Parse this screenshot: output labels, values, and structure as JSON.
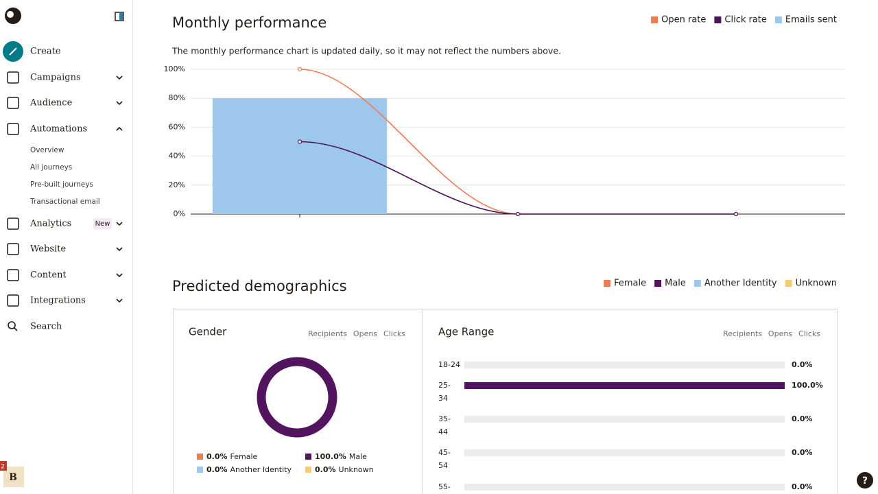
{
  "sidebar": {
    "nav": [
      {
        "label": "Create"
      },
      {
        "label": "Campaigns"
      },
      {
        "label": "Audience"
      },
      {
        "label": "Automations",
        "children": [
          "Overview",
          "All journeys",
          "Pre-built journeys",
          "Transactional email"
        ]
      },
      {
        "label": "Analytics",
        "badge": "New"
      },
      {
        "label": "Website"
      },
      {
        "label": "Content"
      },
      {
        "label": "Integrations"
      },
      {
        "label": "Search"
      }
    ],
    "avatar": "B",
    "notification_count": "2"
  },
  "help": "?",
  "chart_data": [
    {
      "type": "combo",
      "title": "Monthly performance",
      "subtitle": "The monthly performance chart is updated daily, so it may not reflect the numbers above.",
      "categories": [
        null,
        null,
        null
      ],
      "series": [
        {
          "name": "Open rate",
          "type": "line",
          "color": "#f07a52",
          "values": [
            100,
            0,
            0
          ]
        },
        {
          "name": "Click rate",
          "type": "line",
          "color": "#4b1259",
          "values": [
            50,
            0,
            0
          ]
        },
        {
          "name": "Emails sent",
          "type": "bar",
          "color": "#9ec7ec",
          "values": [
            80,
            0,
            0
          ]
        }
      ],
      "ylim": [
        0,
        100
      ],
      "yticks": [
        {
          "value": 0,
          "label": "0%"
        },
        {
          "value": 20,
          "label": "20%"
        },
        {
          "value": 40,
          "label": "40%"
        },
        {
          "value": 60,
          "label": "60%"
        },
        {
          "value": 80,
          "label": "80%"
        },
        {
          "value": 100,
          "label": "100%"
        }
      ],
      "grid": true,
      "legend": "top-right"
    },
    {
      "type": "pie",
      "title": "Predicted demographics",
      "subtitle": "Gender",
      "tabs": [
        "Recipients",
        "Opens",
        "Clicks"
      ],
      "categories": [
        "Female",
        "Male",
        "Another Identity",
        "Unknown"
      ],
      "colors": [
        "#f07a52",
        "#52145e",
        "#9ec7ec",
        "#f5cd6a"
      ],
      "values": [
        0,
        100,
        0,
        0
      ],
      "value_labels": [
        "0.0%",
        "100.0%",
        "0.0%",
        "0.0%"
      ],
      "donut": true,
      "legend": "top-right"
    },
    {
      "type": "bar",
      "orientation": "horizontal",
      "subtitle": "Age Range",
      "tabs": [
        "Recipients",
        "Opens",
        "Clicks"
      ],
      "categories": [
        "18-24",
        "25-34",
        "35-44",
        "45-54",
        "55-"
      ],
      "values": [
        0,
        100,
        0,
        0,
        0
      ],
      "value_labels": [
        "0.0%",
        "100.0%",
        "0.0%",
        "0.0%",
        "0.0%"
      ],
      "color": "#52145e",
      "track_color": "#ececec",
      "xlim": [
        0,
        100
      ]
    }
  ]
}
